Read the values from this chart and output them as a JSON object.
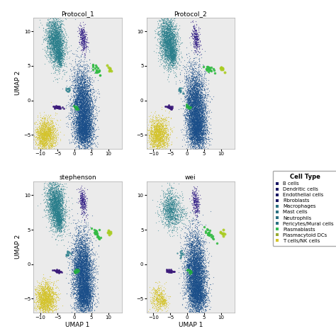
{
  "panels": [
    "Protocol_1",
    "Protocol_2",
    "stephenson",
    "wei"
  ],
  "xlabel": "UMAP 1",
  "ylabel": "UMAP 2",
  "xlim": [
    -12,
    14
  ],
  "ylim": [
    -7,
    12
  ],
  "xticks": [
    -10,
    -5,
    0,
    5,
    10
  ],
  "yticks": [
    -5,
    0,
    5,
    10
  ],
  "background_color": "#ebebeb",
  "cell_colors": {
    "T_macro": "#1e5799",
    "T_teal": "#2a7f8a",
    "purple_cluster": "#3b2288",
    "yellow": "#d4c429",
    "fibroblast": "#4a2a8a",
    "green_small": "#33bb55",
    "green_tiny": "#22aa44",
    "dark_dots": "#222266",
    "teal_dots": "#2a8a7a"
  },
  "legend_entries": [
    [
      "B cells",
      "#1a1864"
    ],
    [
      "Dendritic cells",
      "#1a1864"
    ],
    [
      "Endothelial cells",
      "#1a1864"
    ],
    [
      "Fibroblasts",
      "#1a1864"
    ],
    [
      "Macrophages",
      "#2a7080"
    ],
    [
      "Mast cells",
      "#2a7080"
    ],
    [
      "Neutrophils",
      "#2a7080"
    ],
    [
      "Pericytes/Mural cells",
      "#2a7080"
    ],
    [
      "Plasmablasts",
      "#33bb55"
    ],
    [
      "Plasmacytoid DCs",
      "#99aa33"
    ],
    [
      "T cells/NK cells",
      "#d4c429"
    ]
  ],
  "seed": 42
}
